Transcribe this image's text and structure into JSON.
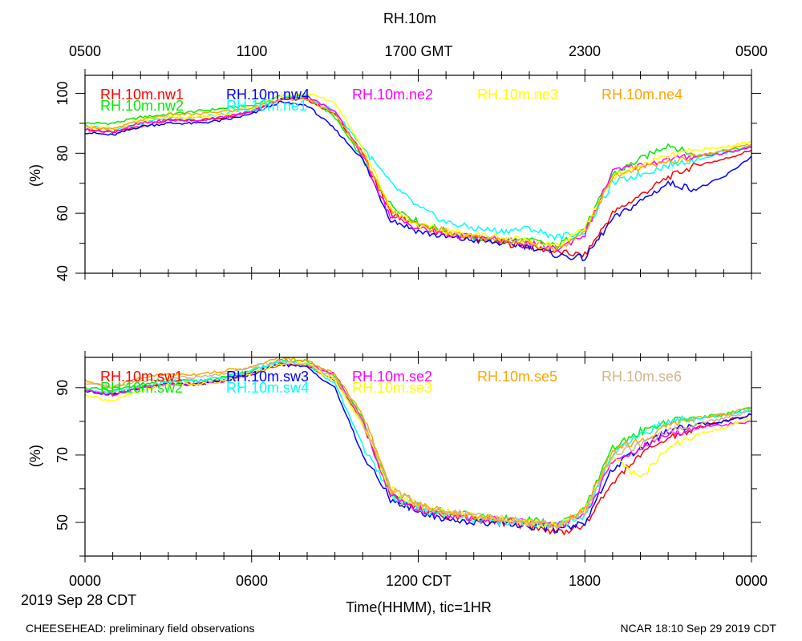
{
  "title": "RH.10m",
  "top_axis": {
    "ticks": [
      "0500",
      "1100",
      "1700 GMT",
      "2300",
      "0500"
    ]
  },
  "bottom_axis": {
    "ticks": [
      "0000",
      "0600",
      "1200 CDT",
      "1800",
      "0000"
    ],
    "date_label": "2019 Sep 28 CDT",
    "xlabel": "Time(HHMM), tic=1HR"
  },
  "footer": {
    "left": "CHEESEHEAD: preliminary field observations",
    "right": "NCAR 18:10 Sep 29 2019 CDT"
  },
  "chart_data": [
    {
      "type": "line",
      "name": "north-panel",
      "ylabel": "(%)",
      "ylim": [
        40,
        106
      ],
      "xlim": [
        0,
        24
      ],
      "yticks": [
        40,
        60,
        80,
        100
      ],
      "x": [
        0,
        1,
        2,
        3,
        4,
        5,
        6,
        7,
        8,
        9,
        10,
        11,
        12,
        13,
        14,
        15,
        16,
        17,
        18,
        19,
        20,
        21,
        22,
        23,
        24
      ],
      "series": [
        {
          "name": "RH.10m.nw1",
          "color": "#ff0000",
          "values": [
            88,
            87,
            89,
            91,
            91,
            92,
            94,
            98,
            98,
            93,
            80,
            60,
            56,
            53,
            52,
            50,
            49,
            47,
            46,
            60,
            66,
            72,
            76,
            78,
            81
          ]
        },
        {
          "name": "RH.10m.nw2",
          "color": "#00ee00",
          "values": [
            90,
            90,
            92,
            93,
            94,
            95,
            96,
            99,
            99,
            92,
            78,
            63,
            57,
            54,
            52,
            51,
            51,
            49,
            55,
            73,
            78,
            83,
            79,
            81,
            82
          ]
        },
        {
          "name": "RH.10m.nw4",
          "color": "#0000ff",
          "values": [
            87,
            86,
            89,
            90,
            90,
            91,
            93,
            97,
            96,
            88,
            78,
            58,
            54,
            52,
            51,
            50,
            49,
            46,
            45,
            58,
            64,
            70,
            68,
            72,
            79
          ]
        },
        {
          "name": "RH.10m.ne1",
          "color": "#00ffff",
          "values": [
            89,
            88,
            90,
            92,
            92,
            93,
            95,
            99,
            99,
            94,
            82,
            70,
            62,
            57,
            55,
            54,
            55,
            52,
            54,
            70,
            73,
            76,
            78,
            80,
            82
          ]
        },
        {
          "name": "RH.10m.ne2",
          "color": "#ff00ff",
          "values": [
            88,
            87,
            90,
            91,
            91,
            92,
            94,
            98,
            99,
            94,
            79,
            59,
            55,
            53,
            52,
            51,
            50,
            48,
            53,
            74,
            76,
            78,
            79,
            80,
            82
          ]
        },
        {
          "name": "RH.10m.ne3",
          "color": "#ffff00",
          "values": [
            89,
            88,
            91,
            92,
            92,
            93,
            95,
            99,
            100,
            97,
            82,
            62,
            56,
            54,
            53,
            52,
            51,
            49,
            55,
            72,
            76,
            79,
            81,
            82,
            84
          ]
        },
        {
          "name": "RH.10m.ne4",
          "color": "#ffa500",
          "values": [
            89,
            88,
            91,
            93,
            93,
            94,
            95,
            98,
            98,
            93,
            80,
            61,
            56,
            54,
            52,
            51,
            50,
            48,
            54,
            72,
            75,
            77,
            79,
            81,
            83
          ]
        }
      ]
    },
    {
      "type": "line",
      "name": "south-panel",
      "ylabel": "(%)",
      "ylim": [
        40,
        99
      ],
      "xlim": [
        0,
        24
      ],
      "yticks": [
        50,
        70,
        90
      ],
      "x": [
        0,
        1,
        2,
        3,
        4,
        5,
        6,
        7,
        8,
        9,
        10,
        11,
        12,
        13,
        14,
        15,
        16,
        17,
        18,
        19,
        20,
        21,
        22,
        23,
        24
      ],
      "series": [
        {
          "name": "RH.10m.sw1",
          "color": "#ff0000",
          "values": [
            89,
            88,
            90,
            91,
            91,
            92,
            94,
            97,
            97,
            92,
            80,
            58,
            54,
            52,
            51,
            50,
            49,
            47,
            49,
            62,
            70,
            75,
            78,
            80,
            82
          ]
        },
        {
          "name": "RH.10m.sw2",
          "color": "#00ee00",
          "values": [
            90,
            89,
            91,
            92,
            92,
            93,
            95,
            98,
            98,
            93,
            81,
            59,
            55,
            53,
            52,
            51,
            51,
            49,
            54,
            72,
            77,
            80,
            81,
            82,
            84
          ]
        },
        {
          "name": "RH.10m.sw3",
          "color": "#0000ff",
          "values": [
            89,
            88,
            90,
            91,
            91,
            92,
            94,
            97,
            96,
            90,
            70,
            57,
            53,
            51,
            50,
            50,
            49,
            48,
            50,
            66,
            72,
            77,
            79,
            80,
            82
          ]
        },
        {
          "name": "RH.10m.sw4",
          "color": "#00ffff",
          "values": [
            89,
            89,
            90,
            92,
            92,
            93,
            95,
            98,
            97,
            91,
            73,
            58,
            54,
            52,
            51,
            50,
            50,
            49,
            52,
            70,
            76,
            80,
            81,
            82,
            83
          ]
        },
        {
          "name": "RH.10m.se2",
          "color": "#ff00ff",
          "values": [
            89,
            88,
            90,
            91,
            91,
            92,
            94,
            97,
            97,
            94,
            80,
            58,
            54,
            52,
            51,
            51,
            50,
            49,
            52,
            68,
            72,
            76,
            78,
            79,
            80
          ]
        },
        {
          "name": "RH.10m.se3",
          "color": "#ffff00",
          "values": [
            88,
            86,
            89,
            91,
            91,
            92,
            94,
            97,
            97,
            92,
            79,
            60,
            55,
            53,
            52,
            51,
            50,
            49,
            54,
            70,
            63,
            72,
            76,
            78,
            81
          ]
        },
        {
          "name": "RH.10m.se5",
          "color": "#ffa500",
          "values": [
            92,
            90,
            93,
            94,
            94,
            95,
            96,
            99,
            98,
            94,
            82,
            60,
            56,
            53,
            52,
            51,
            50,
            49,
            54,
            72,
            74,
            79,
            81,
            82,
            84
          ]
        },
        {
          "name": "RH.10m.se6",
          "color": "#d2b48c",
          "values": [
            91,
            90,
            92,
            93,
            93,
            94,
            96,
            98,
            97,
            93,
            80,
            60,
            55,
            53,
            52,
            51,
            50,
            49,
            53,
            70,
            73,
            77,
            79,
            81,
            83
          ]
        }
      ]
    }
  ]
}
